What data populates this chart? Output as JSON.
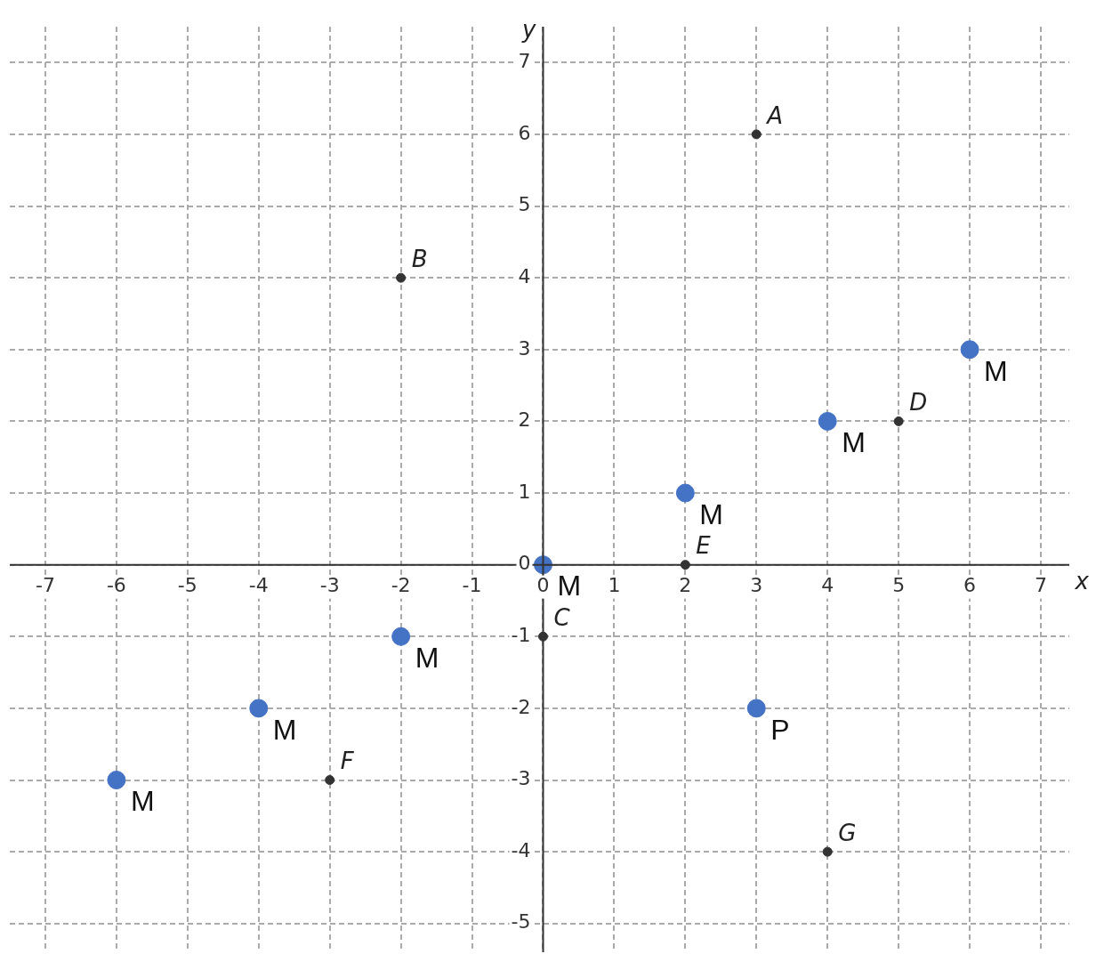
{
  "chart_data": {
    "type": "scatter",
    "xlabel": "x",
    "ylabel": "y",
    "xlim": [
      -7.5,
      7.4
    ],
    "ylim": [
      -5.4,
      7.5
    ],
    "xticks": [
      -7,
      -6,
      -5,
      -4,
      -3,
      -2,
      -1,
      0,
      1,
      2,
      3,
      4,
      5,
      6,
      7
    ],
    "yticks": [
      -5,
      -4,
      -3,
      -2,
      -1,
      0,
      1,
      2,
      3,
      4,
      5,
      6,
      7
    ],
    "grid": true,
    "marker": "circle",
    "series": [
      {
        "color": "#333333",
        "x": [
          3,
          -2,
          0,
          5,
          2,
          -3,
          4
        ],
        "values": [
          6,
          4,
          -1,
          2,
          0,
          -3,
          -4
        ],
        "value_labels": [
          "A",
          "B",
          "C",
          "D",
          "E",
          "F",
          "G"
        ]
      },
      {
        "color": "#4472c4",
        "x": [
          6,
          4,
          2,
          0,
          -2,
          -4,
          -6,
          3
        ],
        "values": [
          3,
          2,
          1,
          0,
          -1,
          -2,
          -3,
          -2
        ],
        "value_labels": [
          "M",
          "M",
          "M",
          "M",
          "M",
          "M",
          "M",
          "P"
        ]
      }
    ]
  }
}
